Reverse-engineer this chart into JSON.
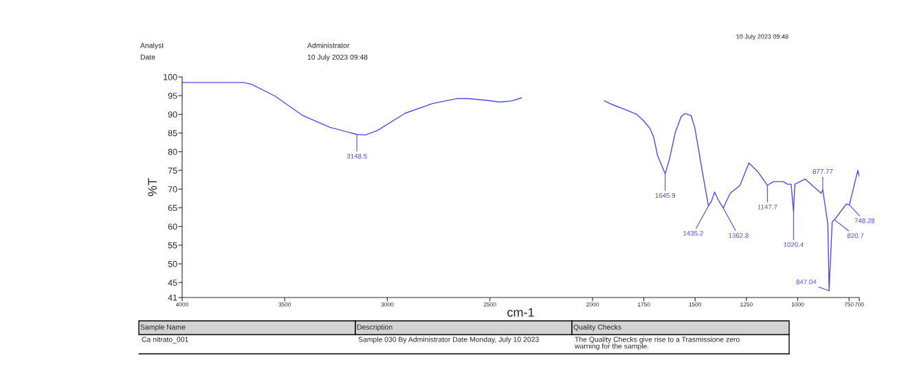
{
  "chart_data": {
    "type": "line",
    "xlabel": "cm-1",
    "ylabel": "%T",
    "xlim": [
      4000,
      700
    ],
    "xticks": [
      4000,
      3500,
      3000,
      2500,
      2000,
      1750,
      1500,
      1250,
      1000,
      750,
      700
    ],
    "ylim": [
      41,
      100
    ],
    "yticks": [
      41,
      45,
      50,
      55,
      60,
      65,
      70,
      75,
      80,
      85,
      90,
      95,
      100
    ],
    "grid": false,
    "marker": "none",
    "line_style": "solid",
    "series": [
      {
        "color": "#4a4af0",
        "x": [
          4000,
          3702,
          3664,
          3548,
          3413,
          3279,
          3148.5,
          3106,
          3048,
          2913,
          2779,
          2663,
          2606,
          2510,
          2452,
          2394,
          2346,
          2200,
          1942,
          1903,
          1846,
          1784,
          1750,
          1721,
          1702,
          1683,
          1645.9,
          1626,
          1597,
          1568,
          1549,
          1520,
          1501,
          1482,
          1463,
          1435.2,
          1420,
          1405,
          1386,
          1362.8,
          1329,
          1281,
          1238,
          1195,
          1147.7,
          1118,
          1070,
          1051,
          1032,
          1020.4,
          1014,
          964,
          886,
          877.77,
          853,
          847.04,
          832,
          820.7,
          763,
          748.28,
          707,
          700
        ],
        "values": [
          98.5,
          98.5,
          98.1,
          94.9,
          89.7,
          86.5,
          84.6,
          84.5,
          85.7,
          90.3,
          92.9,
          94.2,
          94.2,
          93.7,
          93.3,
          93.6,
          94.4,
          null,
          93.6,
          92.6,
          91.4,
          90.0,
          88.2,
          86.3,
          83.9,
          79.0,
          74.1,
          77.8,
          85.1,
          89.4,
          90.2,
          89.7,
          86.3,
          80.2,
          74.1,
          65.5,
          66.8,
          69.2,
          67.0,
          64.9,
          68.9,
          71.0,
          77.0,
          74.7,
          71.0,
          72.0,
          72.0,
          71.3,
          71.3,
          64.0,
          71.3,
          72.7,
          68.9,
          69.8,
          60.6,
          42.8,
          61.2,
          61.8,
          66.0,
          65.8,
          75.0,
          73.4
        ]
      }
    ],
    "annotations": [
      {
        "text": "3148.5",
        "x": 3148.5,
        "y": 84.6
      },
      {
        "text": "1645.9",
        "x": 1645.9,
        "y": 74.1
      },
      {
        "text": "1435.2",
        "x": 1435.2,
        "y": 65.5
      },
      {
        "text": "1362.8",
        "x": 1362.8,
        "y": 64.9
      },
      {
        "text": "1147.7",
        "x": 1147.7,
        "y": 71.0
      },
      {
        "text": "1020.4",
        "x": 1020.4,
        "y": 64.0
      },
      {
        "text": "877.77",
        "x": 877.77,
        "y": 69.8
      },
      {
        "text": "847.04",
        "x": 847.04,
        "y": 42.8
      },
      {
        "text": "820.7",
        "x": 820.7,
        "y": 61.8
      },
      {
        "text": "748.28",
        "x": 748.28,
        "y": 65.8
      },
      "Analyst",
      "Administrator",
      "Date",
      "10 July 2023 09:48",
      "10 July 2023 09:48",
      "Sample Name",
      "Description",
      "Quality Checks",
      "Ca nitrato_001",
      "Sample 030 By Administrator Date Monday, July 10 2023",
      "The Quality Checks give rise to a Trasmissione zero\nwarning for the sample."
    ]
  }
}
